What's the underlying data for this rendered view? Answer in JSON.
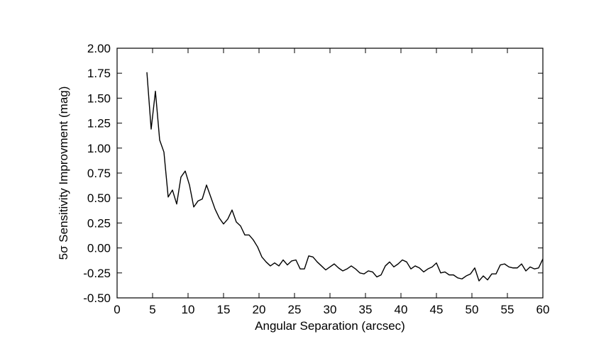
{
  "chart_data": {
    "type": "line",
    "title": "",
    "xlabel": "Angular Separation (arcsec)",
    "ylabel": "5σ Sensitivity Improvment (mag)",
    "xlim": [
      0,
      60
    ],
    "ylim": [
      -0.5,
      2.0
    ],
    "xticks": [
      0,
      5,
      10,
      15,
      20,
      25,
      30,
      35,
      40,
      45,
      50,
      55,
      60
    ],
    "xtick_labels": [
      "0",
      "5",
      "10",
      "15",
      "20",
      "25",
      "30",
      "35",
      "40",
      "45",
      "50",
      "55",
      "60"
    ],
    "yticks": [
      -0.5,
      -0.25,
      0.0,
      0.25,
      0.5,
      0.75,
      1.0,
      1.25,
      1.5,
      1.75,
      2.0
    ],
    "ytick_labels": [
      "-0.50",
      "-0.25",
      "0.00",
      "0.25",
      "0.50",
      "0.75",
      "1.00",
      "1.25",
      "1.50",
      "1.75",
      "2.00"
    ],
    "grid": false,
    "legend": "none",
    "line_color": "#000000",
    "series": [
      {
        "x": [
          4.2,
          4.8,
          5.4,
          6.0,
          6.6,
          7.2,
          7.8,
          8.4,
          9.0,
          9.6,
          10.2,
          10.8,
          11.4,
          12.0,
          12.6,
          13.2,
          13.8,
          14.4,
          15.0,
          15.6,
          16.2,
          16.8,
          17.4,
          18.0,
          18.6,
          19.2,
          19.8,
          20.4,
          21.0,
          21.6,
          22.2,
          22.8,
          23.4,
          24.0,
          24.6,
          25.2,
          25.8,
          26.4,
          27.0,
          27.6,
          28.2,
          28.8,
          29.4,
          30.0,
          30.6,
          31.2,
          31.8,
          32.4,
          33.0,
          33.6,
          34.2,
          34.8,
          35.4,
          36.0,
          36.6,
          37.2,
          37.8,
          38.4,
          39.0,
          39.6,
          40.2,
          40.8,
          41.4,
          42.0,
          42.6,
          43.2,
          43.8,
          44.4,
          45.0,
          45.6,
          46.2,
          46.8,
          47.4,
          48.0,
          48.6,
          49.2,
          49.8,
          50.4,
          51.0,
          51.6,
          52.2,
          52.8,
          53.4,
          54.0,
          54.6,
          55.2,
          55.8,
          56.4,
          57.0,
          57.6,
          58.2,
          58.8,
          59.4,
          60.0
        ],
        "y": [
          1.76,
          1.19,
          1.57,
          1.08,
          0.96,
          0.51,
          0.58,
          0.44,
          0.71,
          0.77,
          0.63,
          0.41,
          0.47,
          0.49,
          0.63,
          0.51,
          0.39,
          0.3,
          0.24,
          0.29,
          0.38,
          0.26,
          0.22,
          0.13,
          0.13,
          0.08,
          0.01,
          -0.09,
          -0.14,
          -0.18,
          -0.15,
          -0.18,
          -0.12,
          -0.17,
          -0.13,
          -0.12,
          -0.21,
          -0.21,
          -0.08,
          -0.09,
          -0.14,
          -0.18,
          -0.22,
          -0.19,
          -0.16,
          -0.2,
          -0.23,
          -0.21,
          -0.18,
          -0.21,
          -0.25,
          -0.26,
          -0.23,
          -0.24,
          -0.29,
          -0.27,
          -0.18,
          -0.14,
          -0.19,
          -0.16,
          -0.12,
          -0.14,
          -0.21,
          -0.18,
          -0.2,
          -0.24,
          -0.21,
          -0.19,
          -0.15,
          -0.25,
          -0.24,
          -0.27,
          -0.27,
          -0.3,
          -0.31,
          -0.28,
          -0.26,
          -0.2,
          -0.33,
          -0.28,
          -0.32,
          -0.26,
          -0.26,
          -0.17,
          -0.16,
          -0.19,
          -0.2,
          -0.2,
          -0.16,
          -0.23,
          -0.19,
          -0.21,
          -0.2,
          -0.11
        ]
      }
    ]
  }
}
